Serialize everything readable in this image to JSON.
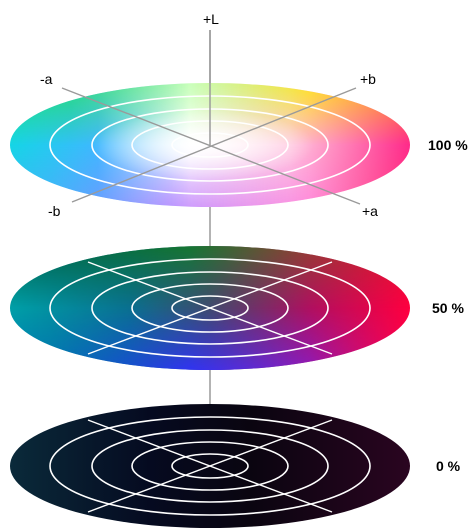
{
  "axes": {
    "plus_l": "+L",
    "minus_a": "-a",
    "plus_b": "+b",
    "minus_b": "-b",
    "plus_a": "+a"
  },
  "levels": [
    {
      "label": "100 %",
      "lightness": 100
    },
    {
      "label": "50 %",
      "lightness": 50
    },
    {
      "label": "0 %",
      "lightness": 0
    }
  ],
  "colors": {
    "axis": "#9a9a9a",
    "ring": "#ffffff",
    "text": "#000000",
    "plus_a_red": "#ff2060",
    "minus_a_cyan": "#00e5d0",
    "plus_b_yellow": "#ffee00",
    "minus_b_blue": "#3b3bff"
  }
}
